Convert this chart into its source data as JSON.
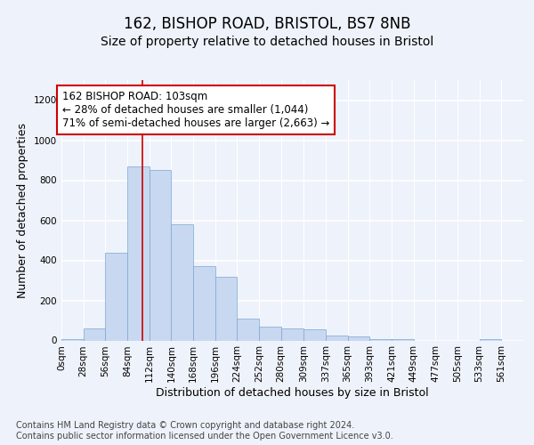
{
  "title1": "162, BISHOP ROAD, BRISTOL, BS7 8NB",
  "title2": "Size of property relative to detached houses in Bristol",
  "xlabel": "Distribution of detached houses by size in Bristol",
  "ylabel": "Number of detached properties",
  "bar_heights": [
    5,
    60,
    440,
    870,
    850,
    580,
    370,
    320,
    110,
    70,
    60,
    55,
    25,
    20,
    5,
    5,
    0,
    0,
    0,
    5,
    0
  ],
  "bin_edges": [
    0,
    28,
    56,
    84,
    112,
    140,
    168,
    196,
    224,
    252,
    280,
    309,
    337,
    365,
    393,
    421,
    449,
    477,
    505,
    533,
    561,
    589
  ],
  "bin_labels": [
    "0sqm",
    "28sqm",
    "56sqm",
    "84sqm",
    "112sqm",
    "140sqm",
    "168sqm",
    "196sqm",
    "224sqm",
    "252sqm",
    "280sqm",
    "309sqm",
    "337sqm",
    "365sqm",
    "393sqm",
    "421sqm",
    "449sqm",
    "477sqm",
    "505sqm",
    "533sqm",
    "561sqm"
  ],
  "bar_color": "#c8d8f0",
  "bar_edge_color": "#7ba7d4",
  "property_size": 103,
  "vline_color": "#cc0000",
  "annotation_text": "162 BISHOP ROAD: 103sqm\n← 28% of detached houses are smaller (1,044)\n71% of semi-detached houses are larger (2,663) →",
  "annotation_box_color": "#ffffff",
  "annotation_box_edge": "#cc0000",
  "ylim": [
    0,
    1300
  ],
  "yticks": [
    0,
    200,
    400,
    600,
    800,
    1000,
    1200
  ],
  "footer_text": "Contains HM Land Registry data © Crown copyright and database right 2024.\nContains public sector information licensed under the Open Government Licence v3.0.",
  "bg_color": "#eef2fa",
  "plot_bg_color": "#eef2fa",
  "grid_color": "#ffffff",
  "title1_fontsize": 12,
  "title2_fontsize": 10,
  "axis_label_fontsize": 9,
  "tick_fontsize": 7.5,
  "annotation_fontsize": 8.5,
  "footer_fontsize": 7
}
